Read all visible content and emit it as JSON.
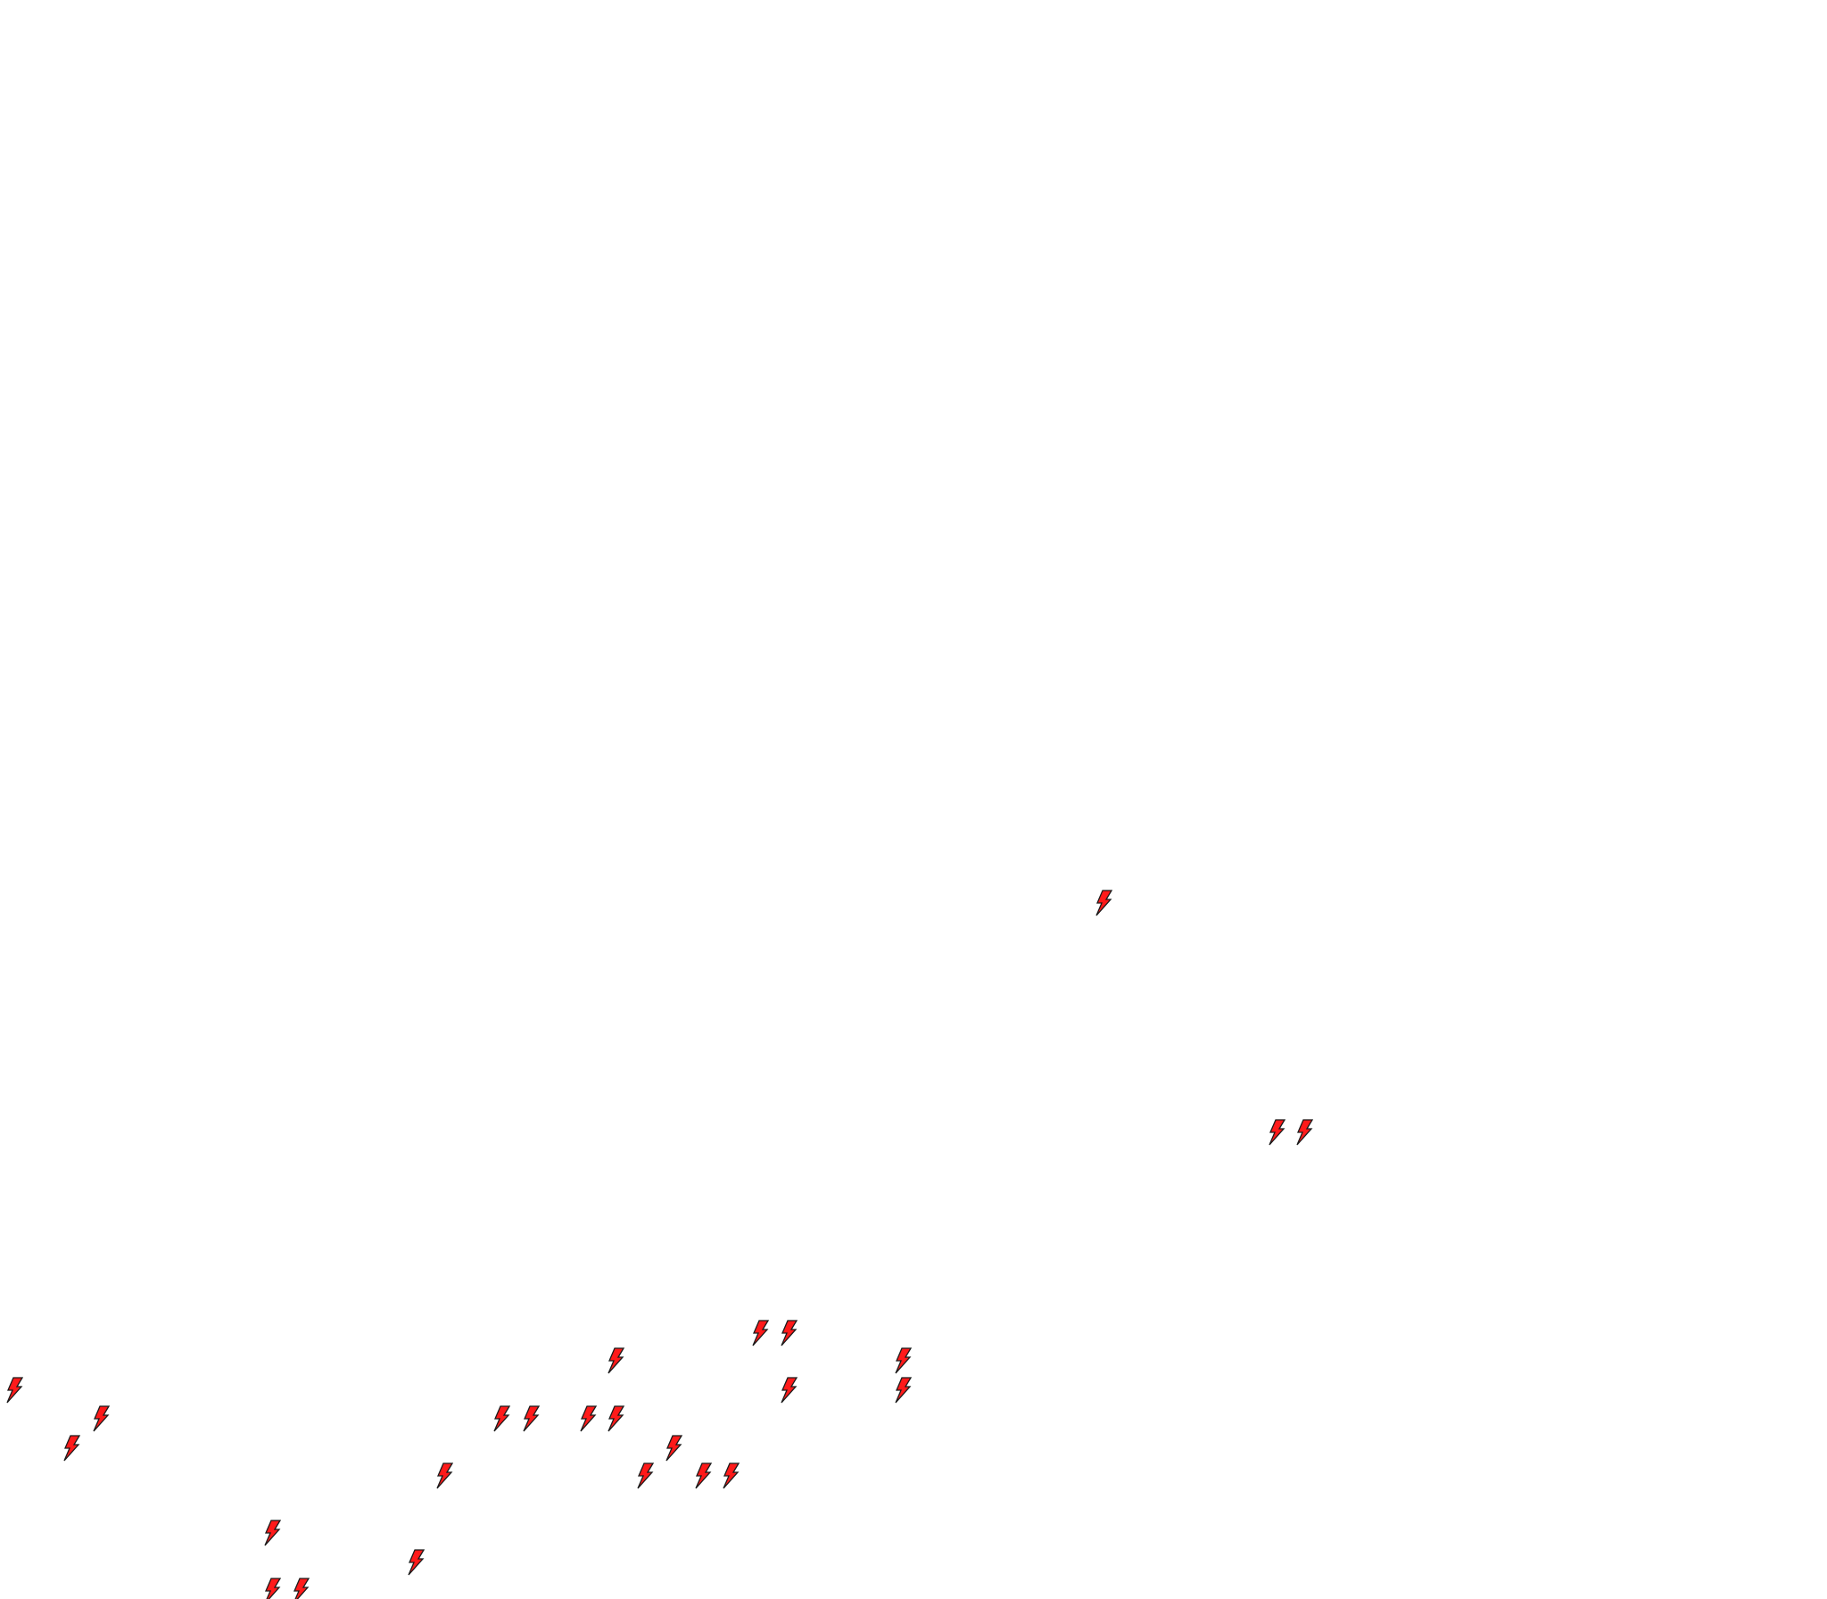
{
  "map": {
    "marker_icon": "lightning-bolt-icon",
    "marker_fill": "#ff1a1a",
    "marker_stroke": "#1a1a1a",
    "background": "#ffffff"
  }
}
